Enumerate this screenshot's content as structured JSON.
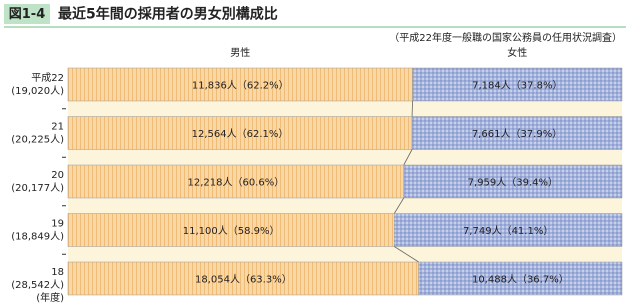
{
  "chart_data": {
    "type": "bar",
    "orientation": "horizontal",
    "stacked": true,
    "figure_label": "図1-4",
    "title": "最近5年間の採用者の男女別構成比",
    "subtitle": "（平成22年度一般職の国家公務員の任用状況調査）",
    "categories": [
      "平成22",
      "21",
      "20",
      "19",
      "18"
    ],
    "category_totals": [
      "(19,020人)",
      "(20,225人)",
      "(20,177人)",
      "(18,849人)",
      "(28,542人)"
    ],
    "y_axis_label": "(年度)",
    "xlim": [
      0,
      100
    ],
    "series": [
      {
        "name": "男性",
        "color": "#f9d8a6",
        "values": [
          62.2,
          62.1,
          60.6,
          58.9,
          63.3
        ],
        "value_labels": [
          "11,836人（62.2%）",
          "12,564人（62.1%）",
          "12,218人（60.6%）",
          "11,100人（58.9%）",
          "18,054人（63.3%）"
        ]
      },
      {
        "name": "女性",
        "color": "#a3b2dd",
        "values": [
          37.8,
          37.9,
          39.4,
          41.1,
          36.7
        ],
        "value_labels": [
          "7,184人（37.8%）",
          "7,661人（37.9%）",
          "7,959人（39.4%）",
          "7,749人（41.1%）",
          "10,488人（36.7%）"
        ]
      }
    ]
  }
}
